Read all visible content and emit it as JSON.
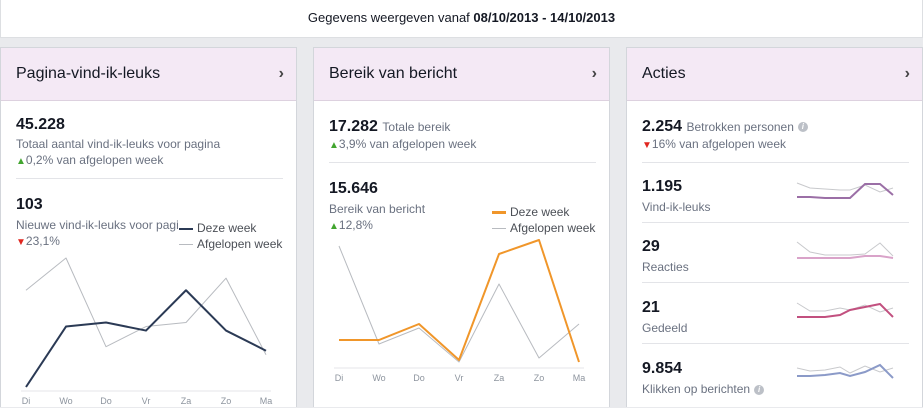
{
  "topbar": {
    "prefix": "Gegevens weergeven vanaf ",
    "range": "08/10/2013 - 14/10/2013"
  },
  "chevron": "›",
  "cards": {
    "likes": {
      "title": "Pagina-vind-ik-leuks",
      "total_value": "45.228",
      "total_label": "Totaal aantal vind-ik-leuks voor pagina",
      "total_change": "0,2%",
      "total_change_suffix": " van afgelopen week",
      "new_value": "103",
      "new_label": "Nieuwe vind-ik-leuks voor pagina",
      "new_change": "23,1%",
      "legend_this": "Deze week",
      "legend_last": "Afgelopen week"
    },
    "reach": {
      "title": "Bereik van bericht",
      "total_value": "17.282",
      "total_label": "Totale bereik",
      "total_change": "3,9%",
      "total_change_suffix": " van afgelopen week",
      "post_value": "15.646",
      "post_label": "Bereik van bericht",
      "post_change": "12,8%",
      "legend_this": "Deze week",
      "legend_last": "Afgelopen week"
    },
    "actions": {
      "title": "Acties",
      "engaged_value": "2.254",
      "engaged_label": "Betrokken personen",
      "engaged_change": "16%",
      "engaged_change_suffix": " van afgelopen week",
      "rows": [
        {
          "value": "1.195",
          "label": "Vind-ik-leuks"
        },
        {
          "value": "29",
          "label": "Reacties"
        },
        {
          "value": "21",
          "label": "Gedeeld"
        },
        {
          "value": "9.854",
          "label": "Klikken op berichten"
        }
      ]
    }
  },
  "colors": {
    "likes_this": "#2b3a55",
    "reach_this": "#f0962a",
    "last_week": "#b8bbc0",
    "up": "#42a52f",
    "down": "#e0261f",
    "spark_purple": "#9b6fa6",
    "spark_pink": "#d9a3c9",
    "spark_magenta": "#c2507f",
    "spark_blue": "#8b9ac8"
  },
  "chart_data": [
    {
      "type": "line",
      "categories": [
        "Di",
        "Wo",
        "Do",
        "Vr",
        "Za",
        "Zo",
        "Ma"
      ],
      "series": [
        {
          "name": "Deze week",
          "values": [
            5,
            20,
            21,
            19,
            29,
            19,
            14
          ]
        },
        {
          "name": "Afgelopen week",
          "values": [
            29,
            37,
            15,
            20,
            21,
            32,
            13
          ]
        }
      ],
      "ylim": [
        5,
        37
      ]
    },
    {
      "type": "line",
      "categories": [
        "Di",
        "Wo",
        "Do",
        "Vr",
        "Za",
        "Zo",
        "Ma"
      ],
      "series": [
        {
          "name": "Deze week",
          "values": [
            1200,
            1200,
            2000,
            200,
            5500,
            6200,
            100
          ]
        },
        {
          "name": "Afgelopen week",
          "values": [
            5900,
            1000,
            1800,
            100,
            4000,
            300,
            2000
          ]
        }
      ],
      "ylim": [
        0,
        6200
      ]
    }
  ]
}
